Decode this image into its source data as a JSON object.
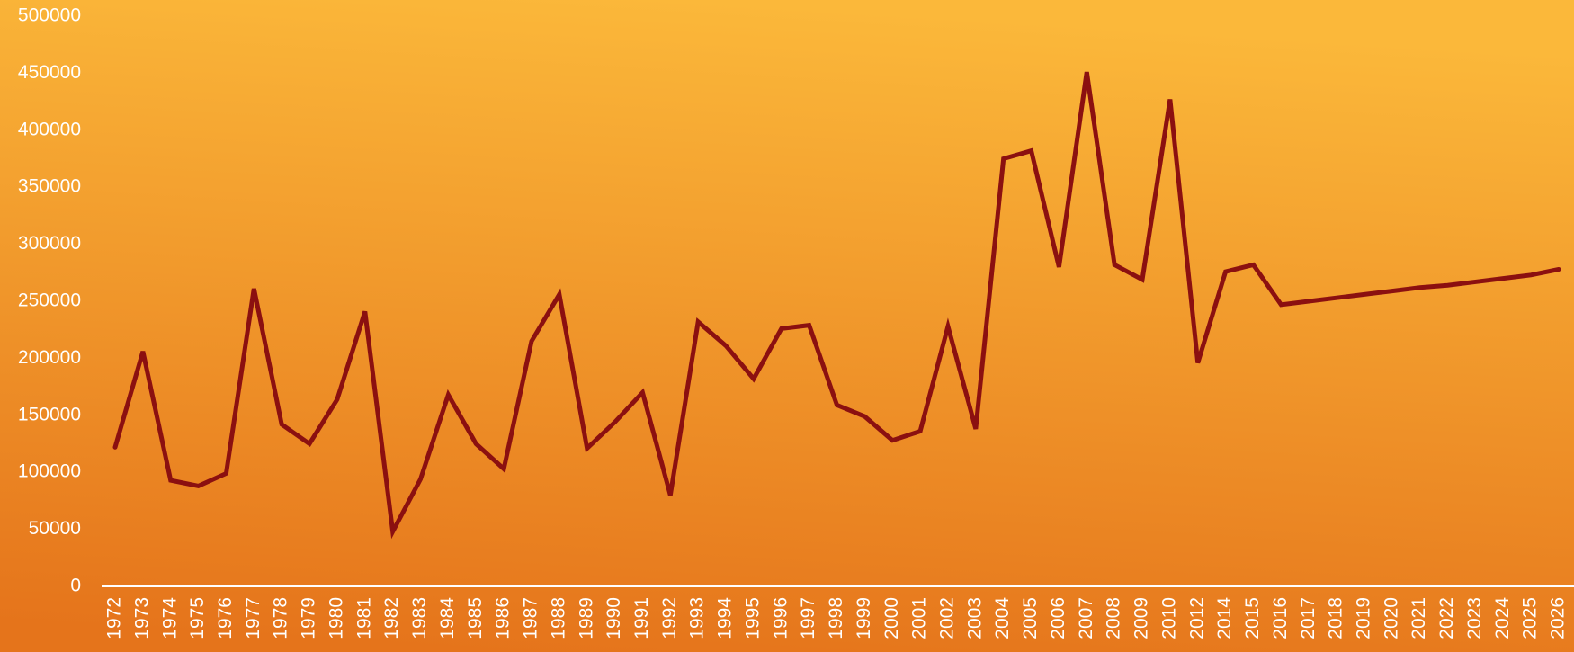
{
  "chart_data": {
    "type": "line",
    "categories": [
      "1972",
      "1973",
      "1974",
      "1975",
      "1976",
      "1977",
      "1978",
      "1979",
      "1980",
      "1981",
      "1982",
      "1983",
      "1984",
      "1985",
      "1986",
      "1987",
      "1988",
      "1989",
      "1990",
      "1991",
      "1992",
      "1993",
      "1994",
      "1995",
      "1996",
      "1997",
      "1998",
      "1999",
      "2000",
      "2001",
      "2002",
      "2003",
      "2004",
      "2005",
      "2006",
      "2007",
      "2008",
      "2009",
      "2010",
      "2012",
      "2014",
      "2015",
      "2016",
      "2017",
      "2018",
      "2019",
      "2020",
      "2021",
      "2022",
      "2023",
      "2024",
      "2025",
      "2026"
    ],
    "values": [
      122000,
      206000,
      93000,
      88000,
      99000,
      261000,
      142000,
      125000,
      164000,
      241000,
      48000,
      94000,
      168000,
      125000,
      103000,
      215000,
      256000,
      121000,
      144000,
      170000,
      80000,
      232000,
      211000,
      182000,
      226000,
      229000,
      159000,
      149000,
      128000,
      136000,
      228000,
      138000,
      375000,
      382000,
      280000,
      451000,
      282000,
      269000,
      427000,
      196000,
      276000,
      282000,
      247000,
      250000,
      253000,
      256000,
      259000,
      262000,
      264000,
      267000,
      270000,
      273000,
      278000
    ],
    "color": "#8b1010",
    "ylim": [
      0,
      500000
    ],
    "yticks": [
      0,
      50000,
      100000,
      150000,
      200000,
      250000,
      300000,
      350000,
      400000,
      450000,
      500000
    ]
  }
}
